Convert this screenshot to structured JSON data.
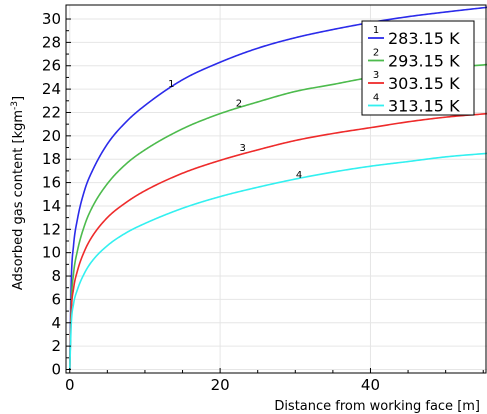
{
  "chart_data": {
    "type": "line",
    "xlabel": "Distance from working face [m]",
    "ylabel": "Adsorbed gas content [kgm",
    "ylabel_sup": "-3",
    "ylabel_close": "]",
    "xlim": [
      -0.5,
      55.5
    ],
    "ylim": [
      -0.3,
      31.2
    ],
    "x_ticks": [
      0,
      20,
      40
    ],
    "x_tick_labels": [
      "0",
      "20",
      "40"
    ],
    "x_minor_step": 5,
    "y_ticks": [
      0,
      2,
      4,
      6,
      8,
      10,
      12,
      14,
      16,
      18,
      20,
      22,
      24,
      26,
      28,
      30
    ],
    "y_tick_labels": [
      "0",
      "2",
      "4",
      "6",
      "8",
      "10",
      "12",
      "14",
      "16",
      "18",
      "20",
      "22",
      "24",
      "26",
      "28",
      "30"
    ],
    "grid": true,
    "legend_position": "top-right",
    "x": [
      0,
      0.2,
      0.5,
      1,
      2,
      3,
      5,
      7.5,
      10,
      15,
      20,
      25,
      30,
      35,
      40,
      45,
      50,
      55.5
    ],
    "series": [
      {
        "name": "283.15 K",
        "curve_label": "1",
        "color": "#2b2bea",
        "values": [
          0,
          7.5,
          10.6,
          12.8,
          15.4,
          17.0,
          19.3,
          21.2,
          22.6,
          24.8,
          26.3,
          27.5,
          28.4,
          29.1,
          29.7,
          30.2,
          30.6,
          31.0
        ]
      },
      {
        "name": "293.15 K",
        "curve_label": "2",
        "color": "#4dbb4d",
        "values": [
          0,
          5.6,
          8.2,
          10.1,
          12.4,
          13.9,
          15.9,
          17.6,
          18.8,
          20.6,
          21.9,
          22.9,
          23.8,
          24.4,
          25.0,
          25.4,
          25.8,
          26.1
        ]
      },
      {
        "name": "303.15 K",
        "curve_label": "3",
        "color": "#ee2b2b",
        "values": [
          0,
          4.9,
          6.9,
          8.4,
          10.2,
          11.4,
          13.0,
          14.3,
          15.3,
          16.8,
          17.9,
          18.8,
          19.6,
          20.2,
          20.7,
          21.2,
          21.6,
          21.9
        ]
      },
      {
        "name": "313.15 K",
        "curve_label": "4",
        "color": "#33f0f0",
        "values": [
          0,
          3.9,
          5.6,
          6.8,
          8.3,
          9.3,
          10.6,
          11.7,
          12.5,
          13.8,
          14.8,
          15.6,
          16.3,
          16.9,
          17.4,
          17.8,
          18.2,
          18.5
        ]
      }
    ],
    "curve_label_positions": [
      {
        "x": 13.5,
        "y": 24.2
      },
      {
        "x": 22.5,
        "y": 22.5
      },
      {
        "x": 23.0,
        "y": 18.7
      },
      {
        "x": 30.5,
        "y": 16.4
      }
    ]
  }
}
